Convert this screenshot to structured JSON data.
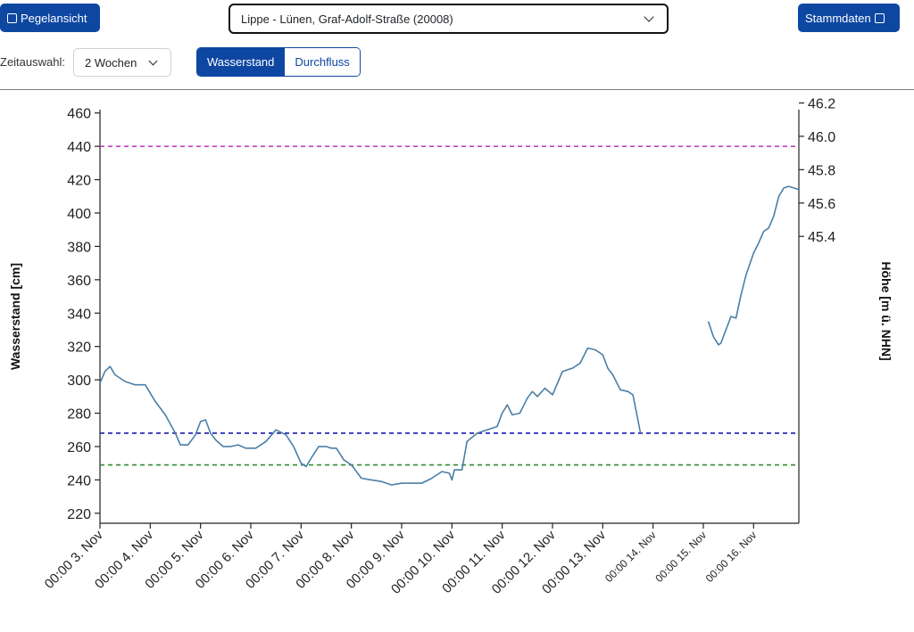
{
  "header": {
    "back_label": "Pegelansicht",
    "station": "Lippe - Lünen, Graf-Adolf-Straße (20008)",
    "stammdaten_label": "Stammdaten",
    "zeitauswahl_label": "Zeitauswahl:",
    "zeitauswahl_value": "2 Wochen",
    "toggle": {
      "active": "Wasserstand",
      "inactive": "Durchfluss"
    }
  },
  "colors": {
    "accent": "#0d47a1",
    "series": "#4a7ea6",
    "line_top": "#c040c0",
    "line_mid": "#1a1ab0",
    "line_low": "#2e8b2e"
  },
  "chart_data": {
    "type": "line",
    "ylabel": "Wasserstand [cm]",
    "y2label": "Höhe [m ü. NHN]",
    "ylim": [
      214,
      462
    ],
    "yticks": [
      220,
      240,
      260,
      280,
      300,
      320,
      340,
      360,
      380,
      400,
      420,
      440,
      460
    ],
    "y2ticks": [
      "45.4",
      "45.6",
      "45.8",
      "46.0",
      "46.2",
      "46.4",
      "46.6",
      "46.8",
      "47.0",
      "47.2",
      "47.4",
      "47.6"
    ],
    "y2_offset_cm": -4154,
    "xlim": [
      0,
      13.9
    ],
    "x_tick_labels": [
      "00:00 3. Nov",
      "00:00 4. Nov",
      "00:00 5. Nov",
      "00:00 6. Nov",
      "00:00 7. Nov",
      "00:00 8. Nov",
      "00:00 9. Nov",
      "00:00 10. Nov",
      "00:00 11. Nov",
      "00:00 12. Nov",
      "00:00 13. Nov",
      "00:00 14. Nov",
      "00:00 15. Nov",
      "00:00 16. Nov"
    ],
    "threshold_lines": [
      440,
      268,
      249
    ],
    "series": [
      {
        "x": [
          0,
          0.1,
          0.2,
          0.3,
          0.5,
          0.7,
          0.9,
          1.1,
          1.3,
          1.5,
          1.6,
          1.75,
          1.9,
          2.0,
          2.1,
          2.2,
          2.3,
          2.45,
          2.6,
          2.75,
          2.9,
          3.1,
          3.3,
          3.5,
          3.7,
          3.85,
          4.0,
          4.1,
          4.2,
          4.35,
          4.5,
          4.6,
          4.7,
          4.85,
          5.0,
          5.2,
          5.4,
          5.6,
          5.8,
          6.0,
          6.2,
          6.4,
          6.6,
          6.8,
          6.95,
          7.0,
          7.05,
          7.2,
          7.3,
          7.5,
          7.7,
          7.9,
          8.0,
          8.1,
          8.2,
          8.35,
          8.5,
          8.6,
          8.7,
          8.85,
          9.0,
          9.2,
          9.4,
          9.55,
          9.7,
          9.85,
          10.0,
          10.1,
          10.2,
          10.35,
          10.5,
          10.6,
          10.75
        ],
        "y": [
          298,
          305,
          308,
          303,
          299,
          297,
          297,
          287,
          279,
          268,
          261,
          261,
          267,
          275,
          276,
          268,
          264,
          260,
          260,
          261,
          259,
          259,
          263,
          270,
          267,
          260,
          250,
          248,
          253,
          260,
          260,
          259,
          259,
          252,
          249,
          241,
          240,
          239,
          237,
          238,
          238,
          238,
          241,
          245,
          244,
          240,
          246,
          246,
          263,
          268,
          270,
          272,
          280,
          285,
          279,
          280,
          289,
          293,
          290,
          295,
          291,
          305,
          307,
          310,
          319,
          318,
          315,
          307,
          303,
          294,
          293,
          291,
          268
        ]
      },
      {
        "x": [
          12.1,
          12.2,
          12.3,
          12.35,
          12.45,
          12.55,
          12.65,
          12.75,
          12.85,
          13.0,
          13.1,
          13.2,
          13.3,
          13.4,
          13.5,
          13.6,
          13.7,
          13.8,
          13.9
        ],
        "y": [
          335,
          326,
          321,
          322,
          330,
          338,
          337,
          351,
          363,
          376,
          382,
          389,
          391,
          398,
          410,
          415,
          416,
          415,
          414
        ]
      }
    ]
  }
}
